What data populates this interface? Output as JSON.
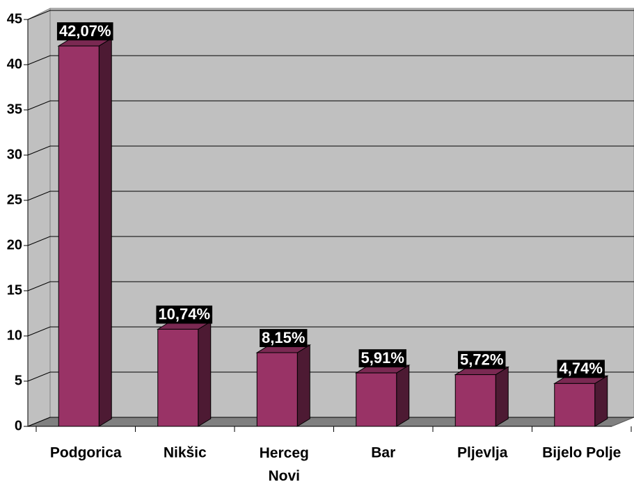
{
  "chart_data": {
    "type": "bar3d",
    "categories": [
      "Podgorica",
      "Nikšic",
      "Herceg\nNovi",
      "Bar",
      "Pljevlja",
      "Bijelo Polje"
    ],
    "values": [
      42.07,
      10.74,
      8.15,
      5.91,
      5.72,
      4.74
    ],
    "value_labels": [
      "42,07%",
      "10,74%",
      "8,15%",
      "5,91%",
      "5,72%",
      "4,74%"
    ],
    "color": "#993366",
    "ylim": [
      0,
      45
    ],
    "yticks": [
      0,
      5,
      10,
      15,
      20,
      25,
      30,
      35,
      40,
      45
    ],
    "grid": true
  }
}
